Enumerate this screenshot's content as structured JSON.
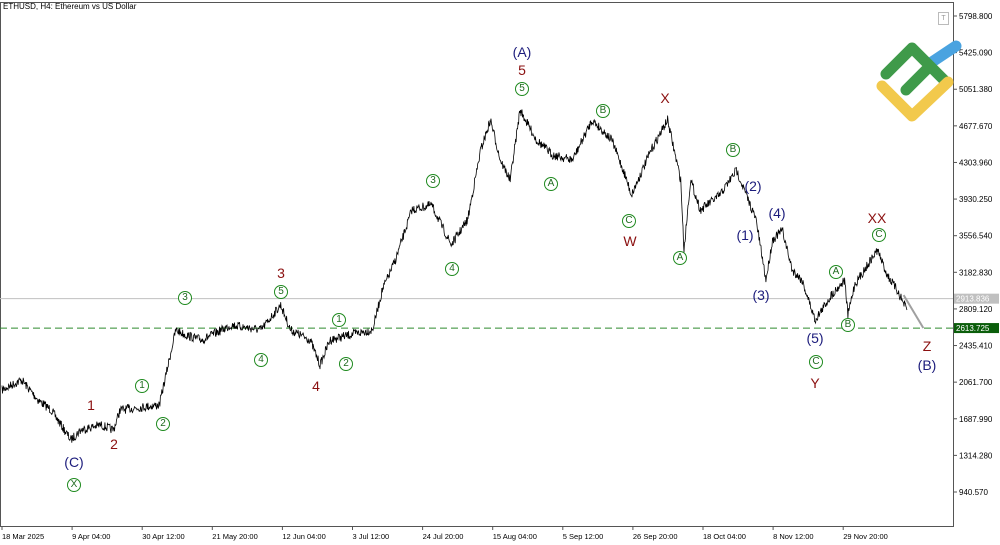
{
  "title": "ETHUSD, H4:  Ethereum vs US Dollar",
  "colors": {
    "price_line": "#000000",
    "bid_line": "#c0c0c0",
    "target_line": "#2e8b2e",
    "target_badge": "#0b5e0b",
    "bid_badge": "#c0c0c0",
    "projection": "#a0a0a0",
    "wave_red": "#8b1010",
    "wave_navy": "#1c1c7c",
    "wave_green": "#1f8a1f"
  },
  "logo": {
    "icon": "company-logo",
    "colors": [
      "#3f9a4a",
      "#f2c94c",
      "#4aa3e0"
    ]
  },
  "toolbar": {
    "trade_button": "T"
  },
  "chart_data": {
    "type": "line",
    "symbol": "ETHUSD",
    "timeframe": "H4",
    "ylim": [
      940.57,
      5798.8
    ],
    "y_ticks": [
      "5798.800",
      "5425.090",
      "5051.380",
      "4677.670",
      "4303.960",
      "3930.250",
      "3556.540",
      "3182.830",
      "2809.120",
      "2435.410",
      "2061.700",
      "1687.990",
      "1314.280",
      "940.570"
    ],
    "x_ticks": [
      "18 Mar 2025",
      "9 Apr 04:00",
      "30 Apr 12:00",
      "21 May 20:00",
      "12 Jun 04:00",
      "3 Jul 12:00",
      "24 Jul 20:00",
      "15 Aug 04:00",
      "5 Sep 12:00",
      "26 Sep 20:00",
      "18 Oct 04:00",
      "8 Nov 12:00",
      "29 Nov 20:00"
    ],
    "current_price": "2913.836",
    "target_level": "2613.725",
    "series": [
      [
        "2025-03-18",
        1982
      ],
      [
        "2025-03-24",
        2084
      ],
      [
        "2025-03-29",
        1880
      ],
      [
        "2025-04-02",
        1778
      ],
      [
        "2025-04-08",
        1472
      ],
      [
        "2025-04-11",
        1574
      ],
      [
        "2025-04-17",
        1625
      ],
      [
        "2025-04-21",
        1574
      ],
      [
        "2025-04-23",
        1778
      ],
      [
        "2025-05-05",
        1829
      ],
      [
        "2025-05-08",
        2288
      ],
      [
        "2025-05-10",
        2594
      ],
      [
        "2025-05-13",
        2543
      ],
      [
        "2025-05-18",
        2492
      ],
      [
        "2025-05-27",
        2645
      ],
      [
        "2025-06-05",
        2594
      ],
      [
        "2025-06-11",
        2849
      ],
      [
        "2025-06-14",
        2594
      ],
      [
        "2025-06-20",
        2492
      ],
      [
        "2025-06-23",
        2237
      ],
      [
        "2025-06-26",
        2492
      ],
      [
        "2025-07-02",
        2543
      ],
      [
        "2025-07-09",
        2594
      ],
      [
        "2025-07-12",
        3002
      ],
      [
        "2025-07-16",
        3308
      ],
      [
        "2025-07-21",
        3819
      ],
      [
        "2025-07-27",
        3870
      ],
      [
        "2025-08-02",
        3462
      ],
      [
        "2025-08-07",
        3717
      ],
      [
        "2025-08-11",
        4431
      ],
      [
        "2025-08-14",
        4737
      ],
      [
        "2025-08-17",
        4329
      ],
      [
        "2025-08-20",
        4125
      ],
      [
        "2025-08-23",
        4840
      ],
      [
        "2025-08-28",
        4533
      ],
      [
        "2025-09-02",
        4380
      ],
      [
        "2025-09-08",
        4329
      ],
      [
        "2025-09-14",
        4737
      ],
      [
        "2025-09-20",
        4533
      ],
      [
        "2025-09-24",
        4176
      ],
      [
        "2025-09-26",
        3972
      ],
      [
        "2025-10-02",
        4431
      ],
      [
        "2025-10-07",
        4737
      ],
      [
        "2025-10-11",
        4125
      ],
      [
        "2025-10-12",
        3411
      ],
      [
        "2025-10-14",
        4125
      ],
      [
        "2025-10-17",
        3819
      ],
      [
        "2025-10-23",
        3972
      ],
      [
        "2025-10-28",
        4227
      ],
      [
        "2025-10-31",
        3972
      ],
      [
        "2025-11-03",
        3717
      ],
      [
        "2025-11-06",
        3104
      ],
      [
        "2025-11-08",
        3513
      ],
      [
        "2025-11-11",
        3615
      ],
      [
        "2025-11-14",
        3206
      ],
      [
        "2025-11-17",
        3104
      ],
      [
        "2025-11-21",
        2696
      ],
      [
        "2025-11-26",
        2951
      ],
      [
        "2025-11-30",
        3104
      ],
      [
        "2025-12-01",
        2747
      ],
      [
        "2025-12-03",
        3053
      ],
      [
        "2025-12-06",
        3206
      ],
      [
        "2025-12-10",
        3411
      ],
      [
        "2025-12-13",
        3155
      ],
      [
        "2025-12-16",
        3002
      ],
      [
        "2025-12-19",
        2798
      ]
    ],
    "projection": [
      [
        "2025-12-18",
        2950
      ],
      [
        "2025-12-24",
        2614
      ]
    ],
    "wave_labels": [
      {
        "text": "(C)",
        "style": "navy"
      },
      {
        "text": "X",
        "style": "circ"
      },
      {
        "text": "1",
        "style": "red"
      },
      {
        "text": "2",
        "style": "red"
      },
      {
        "text": "1",
        "style": "circ"
      },
      {
        "text": "2",
        "style": "circ"
      },
      {
        "text": "3",
        "style": "circ"
      },
      {
        "text": "3",
        "style": "red"
      },
      {
        "text": "5",
        "style": "circ"
      },
      {
        "text": "4",
        "style": "circ"
      },
      {
        "text": "4",
        "style": "red"
      },
      {
        "text": "1",
        "style": "circ"
      },
      {
        "text": "2",
        "style": "circ"
      },
      {
        "text": "3",
        "style": "circ"
      },
      {
        "text": "4",
        "style": "circ"
      },
      {
        "text": "(A)",
        "style": "navy"
      },
      {
        "text": "5",
        "style": "red"
      },
      {
        "text": "5",
        "style": "circ"
      },
      {
        "text": "A",
        "style": "circ"
      },
      {
        "text": "B",
        "style": "circ"
      },
      {
        "text": "C",
        "style": "circ"
      },
      {
        "text": "W",
        "style": "red"
      },
      {
        "text": "X",
        "style": "red"
      },
      {
        "text": "A",
        "style": "circ"
      },
      {
        "text": "B",
        "style": "circ"
      },
      {
        "text": "(2)",
        "style": "navy"
      },
      {
        "text": "(4)",
        "style": "navy"
      },
      {
        "text": "(1)",
        "style": "navy"
      },
      {
        "text": "(3)",
        "style": "navy"
      },
      {
        "text": "(5)",
        "style": "navy"
      },
      {
        "text": "C",
        "style": "circ"
      },
      {
        "text": "Y",
        "style": "red"
      },
      {
        "text": "A",
        "style": "circ"
      },
      {
        "text": "B",
        "style": "circ"
      },
      {
        "text": "XX",
        "style": "red"
      },
      {
        "text": "C",
        "style": "circ"
      },
      {
        "text": "Z",
        "style": "red"
      },
      {
        "text": "(B)",
        "style": "navy"
      }
    ]
  }
}
